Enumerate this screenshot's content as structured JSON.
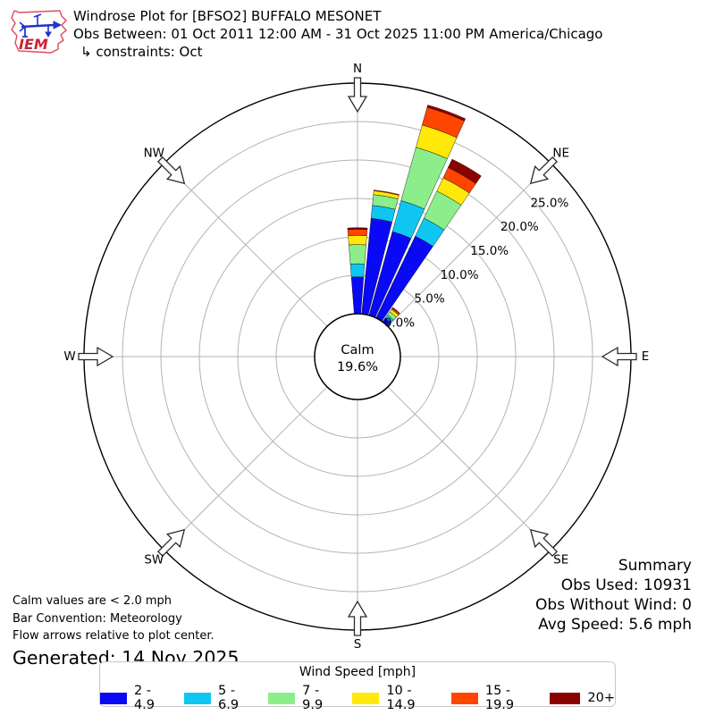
{
  "header": {
    "title": "Windrose Plot for [BFSO2] BUFFALO MESONET",
    "subtitle": "Obs Between: 01 Oct 2011 12:00 AM - 31 Oct 2025 11:00 PM America/Chicago",
    "constraints": "↳ constraints: Oct",
    "logo_text": "IEM"
  },
  "summary": {
    "heading": "Summary",
    "obs_used": "Obs Used: 10931",
    "obs_without_wind": "Obs Without Wind: 0",
    "avg_speed": "Avg Speed: 5.6 mph"
  },
  "footnotes": {
    "calm_note": "Calm values are < 2.0 mph",
    "bar_convention": "Bar Convention: Meteorology",
    "flow_note": "Flow arrows relative to plot center.",
    "generated": "Generated: 14 Nov 2025"
  },
  "legend": {
    "title": "Wind Speed [mph]",
    "items": [
      {
        "label": "2 - 4.9",
        "color": "#0909F5"
      },
      {
        "label": "5 - 6.9",
        "color": "#0FC6F2"
      },
      {
        "label": "7 - 9.9",
        "color": "#8BEE8B"
      },
      {
        "label": "10 - 14.9",
        "color": "#FFE80A"
      },
      {
        "label": "15 - 19.9",
        "color": "#FF4500"
      },
      {
        "label": "20+",
        "color": "#8B0000"
      }
    ]
  },
  "chart_data": {
    "type": "windrose",
    "title": "Windrose Plot for [BFSO2] BUFFALO MESONET",
    "units": "mph",
    "calm": {
      "label": "Calm",
      "percent_label": "19.6%",
      "percent": 19.6
    },
    "direction_labels": [
      "N",
      "NE",
      "E",
      "SE",
      "S",
      "SW",
      "W",
      "NW"
    ],
    "ring_labels": [
      "0.0%",
      "5.0%",
      "10.0%",
      "15.0%",
      "20.0%",
      "25.0%"
    ],
    "ring_percents": [
      0,
      5,
      10,
      15,
      20,
      25
    ],
    "rmax_percent": 30,
    "rlabel_azimuth_deg": 51.4,
    "grid": "on",
    "speed_bins": [
      "2 - 4.9",
      "5 - 6.9",
      "7 - 9.9",
      "10 - 14.9",
      "15 - 19.9",
      "20+"
    ],
    "sector_width_deg": 8.8,
    "bars": [
      {
        "direction_deg": 0,
        "values": [
          4.8,
          1.7,
          2.5,
          1.2,
          0.8,
          0.2
        ]
      },
      {
        "direction_deg": 10,
        "values": [
          12.5,
          1.7,
          1.4,
          0.5,
          0.1,
          0.0
        ]
      },
      {
        "direction_deg": 20,
        "values": [
          11.3,
          4.2,
          7.2,
          3.0,
          2.4,
          0.3
        ]
      },
      {
        "direction_deg": 30,
        "values": [
          11.8,
          2.6,
          3.9,
          1.9,
          1.5,
          1.2
        ]
      },
      {
        "direction_deg": 40,
        "values": [
          0.6,
          0.5,
          0.5,
          0.4,
          0.2,
          0.1
        ]
      }
    ]
  }
}
